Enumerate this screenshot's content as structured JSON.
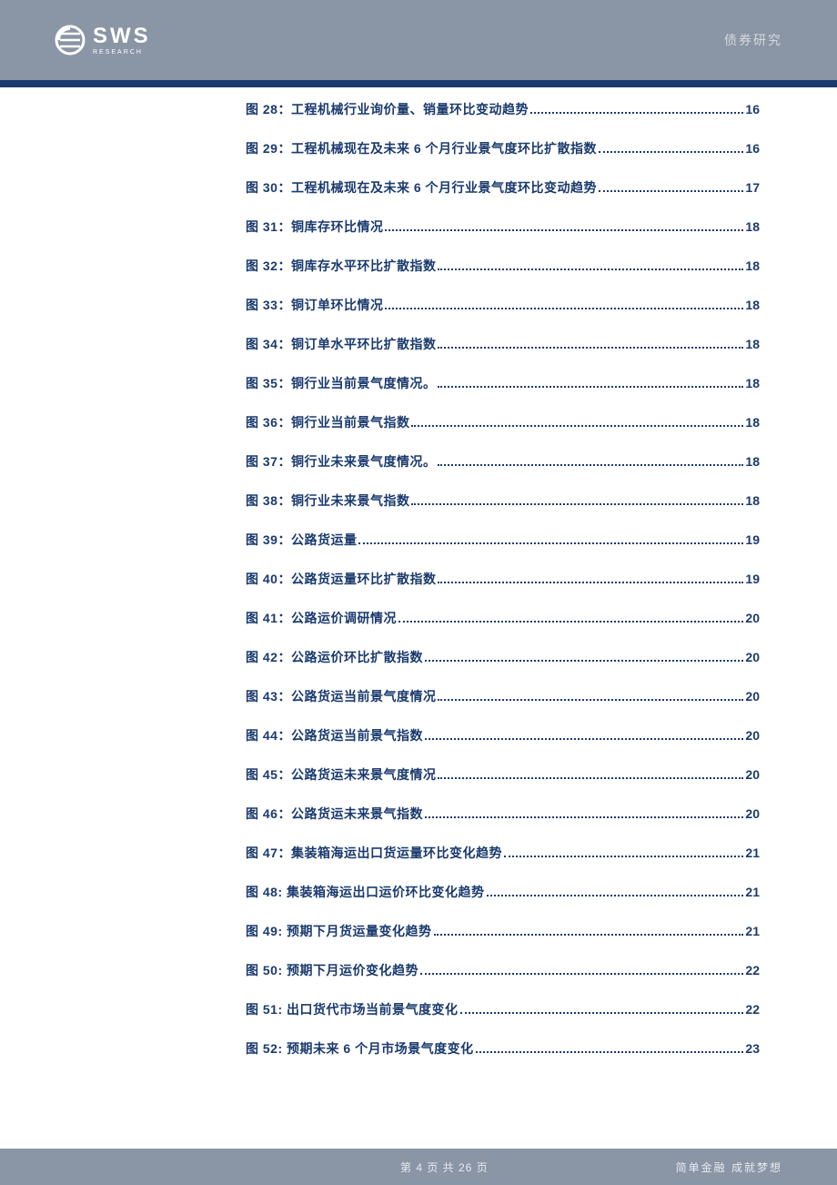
{
  "header": {
    "brand_main": "SWS",
    "brand_sub": "RESEARCH",
    "right_text": "债券研究"
  },
  "colors": {
    "header_bg": "#8a95a5",
    "bar": "#1a3a6e",
    "toc_text": "#1a3a6e",
    "footer_bg": "#8a95a5",
    "logo_fg": "#ffffff"
  },
  "toc": [
    {
      "label": "图 28：工程机械行业询价量、销量环比变动趋势",
      "page": "16"
    },
    {
      "label": "图 29：工程机械现在及未来 6 个月行业景气度环比扩散指数",
      "page": "16"
    },
    {
      "label": "图 30：工程机械现在及未来 6 个月行业景气度环比变动趋势",
      "page": "17"
    },
    {
      "label": "图 31：铜库存环比情况",
      "page": "18"
    },
    {
      "label": "图 32：铜库存水平环比扩散指数",
      "page": "18"
    },
    {
      "label": "图 33：铜订单环比情况",
      "page": "18"
    },
    {
      "label": "图 34：铜订单水平环比扩散指数",
      "page": "18"
    },
    {
      "label": "图 35：铜行业当前景气度情况。",
      "page": "18"
    },
    {
      "label": "图 36：铜行业当前景气指数",
      "page": "18"
    },
    {
      "label": "图 37：铜行业未来景气度情况。",
      "page": "18"
    },
    {
      "label": "图 38：铜行业未来景气指数",
      "page": "18"
    },
    {
      "label": "图 39：公路货运量",
      "page": "19"
    },
    {
      "label": "图 40：公路货运量环比扩散指数",
      "page": "19"
    },
    {
      "label": "图 41：公路运价调研情况",
      "page": "20"
    },
    {
      "label": "图 42：公路运价环比扩散指数",
      "page": "20"
    },
    {
      "label": "图 43：公路货运当前景气度情况",
      "page": "20"
    },
    {
      "label": "图 44：公路货运当前景气指数",
      "page": "20"
    },
    {
      "label": "图 45：公路货运未来景气度情况",
      "page": "20"
    },
    {
      "label": "图 46：公路货运未来景气指数",
      "page": "20"
    },
    {
      "label": "图 47：集装箱海运出口货运量环比变化趋势",
      "page": "21"
    },
    {
      "label": "图 48: 集装箱海运出口运价环比变化趋势",
      "page": "21"
    },
    {
      "label": "图 49: 预期下月货运量变化趋势",
      "page": "21"
    },
    {
      "label": "图 50: 预期下月运价变化趋势",
      "page": "22"
    },
    {
      "label": "图 51: 出口货代市场当前景气度变化",
      "page": "22"
    },
    {
      "label": "图 52: 预期未来 6 个月市场景气度变化",
      "page": "23"
    }
  ],
  "footer": {
    "page_text": "第 4 页  共 26 页",
    "slogan": "简单金融  成就梦想"
  }
}
